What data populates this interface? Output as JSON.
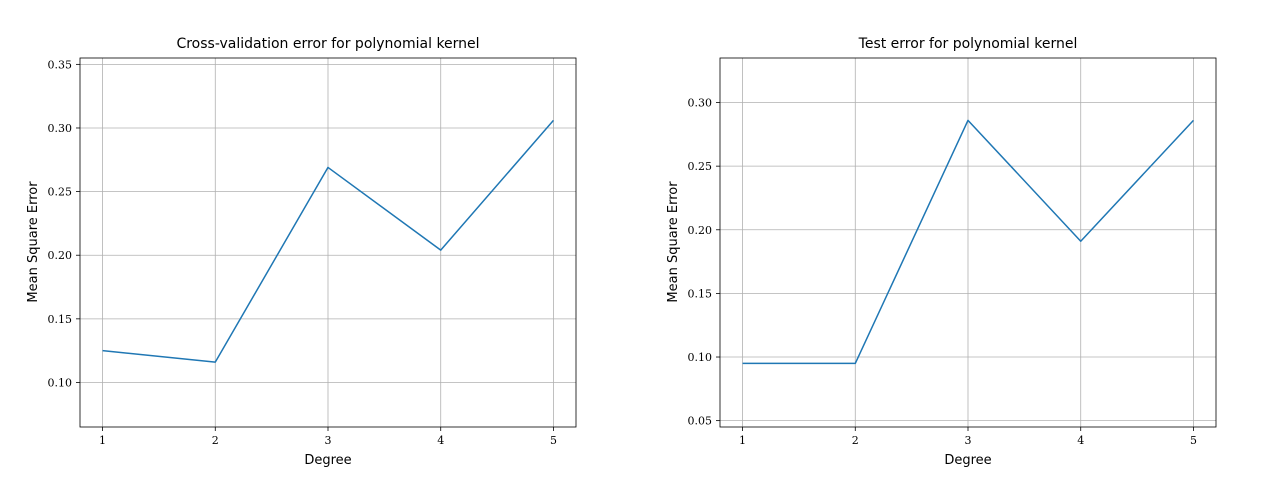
{
  "chart_data": [
    {
      "type": "line",
      "title": "Cross-validation error for polynomial kernel",
      "xlabel": "Degree",
      "ylabel": "Mean Square Error",
      "x": [
        1,
        2,
        3,
        4,
        5
      ],
      "series": [
        {
          "values": [
            0.125,
            0.116,
            0.269,
            0.204,
            0.306
          ],
          "color": "#1f77b4"
        }
      ],
      "xlim": [
        0.8,
        5.2
      ],
      "ylim": [
        0.065,
        0.355
      ],
      "xticks": [
        "1",
        "2",
        "3",
        "4",
        "5"
      ],
      "yticks": [
        0.1,
        0.15,
        0.2,
        0.25,
        0.3,
        0.35
      ],
      "ytick_labels": [
        "0.10",
        "0.15",
        "0.20",
        "0.25",
        "0.30",
        "0.35"
      ],
      "grid": true
    },
    {
      "type": "line",
      "title": "Test error for polynomial kernel",
      "xlabel": "Degree",
      "ylabel": "Mean Square Error",
      "x": [
        1,
        2,
        3,
        4,
        5
      ],
      "series": [
        {
          "values": [
            0.095,
            0.095,
            0.286,
            0.191,
            0.286
          ],
          "color": "#1f77b4"
        }
      ],
      "xlim": [
        0.8,
        5.2
      ],
      "ylim": [
        0.045,
        0.335
      ],
      "xticks": [
        "1",
        "2",
        "3",
        "4",
        "5"
      ],
      "yticks": [
        0.05,
        0.1,
        0.15,
        0.2,
        0.25,
        0.3
      ],
      "ytick_labels": [
        "0.05",
        "0.10",
        "0.15",
        "0.20",
        "0.25",
        "0.30"
      ],
      "grid": true
    }
  ]
}
